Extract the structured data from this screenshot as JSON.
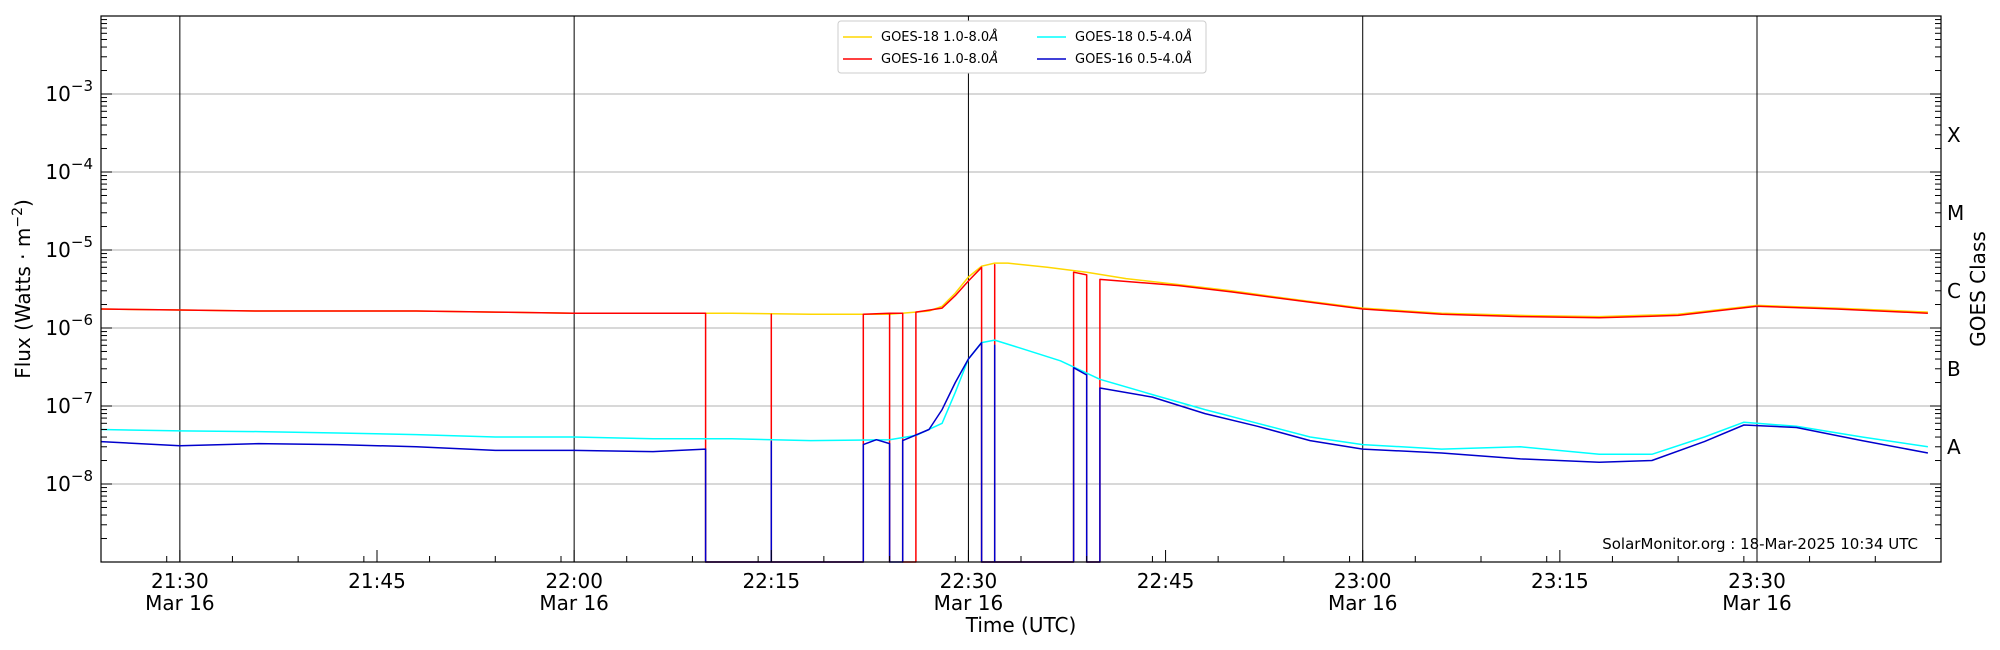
{
  "chart_data": {
    "type": "line",
    "xlabel": "Time (UTC)",
    "ylabel_main": "Flux (Watts · m",
    "ylabel_sup": "−2",
    "ylabel_close": ")",
    "ylabel_right": "GOES Class",
    "y_scale": "log",
    "ylim": [
      1e-09,
      0.01
    ],
    "xlim": [
      "2025-03-16 21:24",
      "2025-03-16 23:44"
    ],
    "y_ticks": [
      {
        "value": 1e-08,
        "base": "10",
        "exp": "−8"
      },
      {
        "value": 1e-07,
        "base": "10",
        "exp": "−7"
      },
      {
        "value": 1e-06,
        "base": "10",
        "exp": "−6"
      },
      {
        "value": 1e-05,
        "base": "10",
        "exp": "−5"
      },
      {
        "value": 0.0001,
        "base": "10",
        "exp": "−4"
      },
      {
        "value": 0.001,
        "base": "10",
        "exp": "−3"
      }
    ],
    "x_ticks": [
      {
        "time": "2025-03-16 21:30",
        "time_label": "21:30",
        "date_label": "Mar 16"
      },
      {
        "time": "2025-03-16 21:45",
        "time_label": "21:45",
        "date_label": ""
      },
      {
        "time": "2025-03-16 22:00",
        "time_label": "22:00",
        "date_label": "Mar 16"
      },
      {
        "time": "2025-03-16 22:15",
        "time_label": "22:15",
        "date_label": ""
      },
      {
        "time": "2025-03-16 22:30",
        "time_label": "22:30",
        "date_label": "Mar 16"
      },
      {
        "time": "2025-03-16 22:45",
        "time_label": "22:45",
        "date_label": ""
      },
      {
        "time": "2025-03-16 23:00",
        "time_label": "23:00",
        "date_label": "Mar 16"
      },
      {
        "time": "2025-03-16 23:15",
        "time_label": "23:15",
        "date_label": ""
      },
      {
        "time": "2025-03-16 23:30",
        "time_label": "23:30",
        "date_label": "Mar 16"
      }
    ],
    "vertical_lines": [
      "2025-03-16 21:30",
      "2025-03-16 22:00",
      "2025-03-16 22:30",
      "2025-03-16 23:00",
      "2025-03-16 23:30"
    ],
    "goes_classes": [
      {
        "label": "A",
        "value": 3e-08
      },
      {
        "label": "B",
        "value": 3e-07
      },
      {
        "label": "C",
        "value": 3e-06
      },
      {
        "label": "M",
        "value": 3e-05
      },
      {
        "label": "X",
        "value": 0.0003
      }
    ],
    "grid": true,
    "legend_position": "top-center",
    "annotation": "SolarMonitor.org : 18-Mar-2025 10:34 UTC",
    "series": [
      {
        "name": "GOES-18 1.0-8.0",
        "name_suffix": "Å",
        "color": "#ffd700",
        "points": [
          [
            "2025-03-16 21:24",
            1.75e-06
          ],
          [
            "2025-03-16 21:30",
            1.7e-06
          ],
          [
            "2025-03-16 21:36",
            1.65e-06
          ],
          [
            "2025-03-16 21:42",
            1.65e-06
          ],
          [
            "2025-03-16 21:48",
            1.65e-06
          ],
          [
            "2025-03-16 21:54",
            1.6e-06
          ],
          [
            "2025-03-16 22:00",
            1.55e-06
          ],
          [
            "2025-03-16 22:06",
            1.55e-06
          ],
          [
            "2025-03-16 22:12",
            1.55e-06
          ],
          [
            "2025-03-16 22:18",
            1.5e-06
          ],
          [
            "2025-03-16 22:24",
            1.5e-06
          ],
          [
            "2025-03-16 22:27",
            1.65e-06
          ],
          [
            "2025-03-16 22:28",
            1.9e-06
          ],
          [
            "2025-03-16 22:29",
            2.8e-06
          ],
          [
            "2025-03-16 22:30",
            4.5e-06
          ],
          [
            "2025-03-16 22:31",
            6.2e-06
          ],
          [
            "2025-03-16 22:32",
            6.8e-06
          ],
          [
            "2025-03-16 22:33",
            6.8e-06
          ],
          [
            "2025-03-16 22:36",
            6e-06
          ],
          [
            "2025-03-16 22:39",
            5.2e-06
          ],
          [
            "2025-03-16 22:42",
            4.3e-06
          ],
          [
            "2025-03-16 22:46",
            3.6e-06
          ],
          [
            "2025-03-16 22:50",
            3e-06
          ],
          [
            "2025-03-16 22:55",
            2.3e-06
          ],
          [
            "2025-03-16 23:00",
            1.8e-06
          ],
          [
            "2025-03-16 23:06",
            1.55e-06
          ],
          [
            "2025-03-16 23:12",
            1.45e-06
          ],
          [
            "2025-03-16 23:18",
            1.4e-06
          ],
          [
            "2025-03-16 23:24",
            1.5e-06
          ],
          [
            "2025-03-16 23:30",
            1.95e-06
          ],
          [
            "2025-03-16 23:36",
            1.8e-06
          ],
          [
            "2025-03-16 23:43",
            1.6e-06
          ]
        ]
      },
      {
        "name": "GOES-16 1.0-8.0",
        "name_suffix": "Å",
        "color": "#ff0000",
        "points": [
          [
            "2025-03-16 21:24",
            1.75e-06
          ],
          [
            "2025-03-16 21:30",
            1.7e-06
          ],
          [
            "2025-03-16 21:36",
            1.65e-06
          ],
          [
            "2025-03-16 21:42",
            1.65e-06
          ],
          [
            "2025-03-16 21:48",
            1.65e-06
          ],
          [
            "2025-03-16 21:54",
            1.6e-06
          ],
          [
            "2025-03-16 22:00",
            1.55e-06
          ],
          [
            "2025-03-16 22:06",
            1.55e-06
          ],
          [
            "2025-03-16 22:10",
            1.55e-06
          ],
          [
            "2025-03-16 22:10",
            1e-09
          ],
          [
            "2025-03-16 22:15",
            1e-09
          ],
          [
            "2025-03-16 22:15",
            1.5e-06
          ],
          [
            "2025-03-16 22:15",
            1e-09
          ],
          [
            "2025-03-16 22:22",
            1e-09
          ],
          [
            "2025-03-16 22:22",
            1.5e-06
          ],
          [
            "2025-03-16 22:24",
            1.55e-06
          ],
          [
            "2025-03-16 22:24",
            1e-09
          ],
          [
            "2025-03-16 22:24",
            1.55e-06
          ],
          [
            "2025-03-16 22:25",
            1.55e-06
          ],
          [
            "2025-03-16 22:25",
            1e-09
          ],
          [
            "2025-03-16 22:26",
            1e-09
          ],
          [
            "2025-03-16 22:26",
            1.6e-06
          ],
          [
            "2025-03-16 22:28",
            1.8e-06
          ],
          [
            "2025-03-16 22:29",
            2.6e-06
          ],
          [
            "2025-03-16 22:30",
            4e-06
          ],
          [
            "2025-03-16 22:31",
            6e-06
          ],
          [
            "2025-03-16 22:31",
            1e-09
          ],
          [
            "2025-03-16 22:32",
            1e-09
          ],
          [
            "2025-03-16 22:32",
            6.5e-06
          ],
          [
            "2025-03-16 22:32",
            1e-09
          ],
          [
            "2025-03-16 22:38",
            1e-09
          ],
          [
            "2025-03-16 22:38",
            5.2e-06
          ],
          [
            "2025-03-16 22:39",
            4.8e-06
          ],
          [
            "2025-03-16 22:39",
            1e-09
          ],
          [
            "2025-03-16 22:40",
            1e-09
          ],
          [
            "2025-03-16 22:40",
            4.2e-06
          ],
          [
            "2025-03-16 22:46",
            3.5e-06
          ],
          [
            "2025-03-16 22:50",
            2.9e-06
          ],
          [
            "2025-03-16 22:55",
            2.25e-06
          ],
          [
            "2025-03-16 23:00",
            1.75e-06
          ],
          [
            "2025-03-16 23:06",
            1.5e-06
          ],
          [
            "2025-03-16 23:12",
            1.4e-06
          ],
          [
            "2025-03-16 23:18",
            1.35e-06
          ],
          [
            "2025-03-16 23:24",
            1.45e-06
          ],
          [
            "2025-03-16 23:30",
            1.9e-06
          ],
          [
            "2025-03-16 23:36",
            1.75e-06
          ],
          [
            "2025-03-16 23:43",
            1.55e-06
          ]
        ]
      },
      {
        "name": "GOES-18 0.5-4.0",
        "name_suffix": "Å",
        "color": "#00ffff",
        "points": [
          [
            "2025-03-16 21:24",
            5e-08
          ],
          [
            "2025-03-16 21:30",
            4.8e-08
          ],
          [
            "2025-03-16 21:36",
            4.7e-08
          ],
          [
            "2025-03-16 21:42",
            4.5e-08
          ],
          [
            "2025-03-16 21:48",
            4.3e-08
          ],
          [
            "2025-03-16 21:54",
            4e-08
          ],
          [
            "2025-03-16 22:00",
            4e-08
          ],
          [
            "2025-03-16 22:06",
            3.8e-08
          ],
          [
            "2025-03-16 22:12",
            3.8e-08
          ],
          [
            "2025-03-16 22:18",
            3.6e-08
          ],
          [
            "2025-03-16 22:24",
            3.7e-08
          ],
          [
            "2025-03-16 22:26",
            4.2e-08
          ],
          [
            "2025-03-16 22:28",
            6e-08
          ],
          [
            "2025-03-16 22:29",
            1.5e-07
          ],
          [
            "2025-03-16 22:30",
            4e-07
          ],
          [
            "2025-03-16 22:31",
            6.5e-07
          ],
          [
            "2025-03-16 22:32",
            7e-07
          ],
          [
            "2025-03-16 22:34",
            5.5e-07
          ],
          [
            "2025-03-16 22:37",
            3.8e-07
          ],
          [
            "2025-03-16 22:40",
            2.2e-07
          ],
          [
            "2025-03-16 22:44",
            1.4e-07
          ],
          [
            "2025-03-16 22:48",
            9e-08
          ],
          [
            "2025-03-16 22:52",
            6e-08
          ],
          [
            "2025-03-16 22:56",
            4e-08
          ],
          [
            "2025-03-16 23:00",
            3.2e-08
          ],
          [
            "2025-03-16 23:06",
            2.8e-08
          ],
          [
            "2025-03-16 23:12",
            3e-08
          ],
          [
            "2025-03-16 23:18",
            2.4e-08
          ],
          [
            "2025-03-16 23:22",
            2.4e-08
          ],
          [
            "2025-03-16 23:26",
            4e-08
          ],
          [
            "2025-03-16 23:29",
            6.2e-08
          ],
          [
            "2025-03-16 23:33",
            5.5e-08
          ],
          [
            "2025-03-16 23:38",
            4e-08
          ],
          [
            "2025-03-16 23:43",
            3e-08
          ]
        ]
      },
      {
        "name": "GOES-16 0.5-4.0",
        "name_suffix": "Å",
        "color": "#0000cc",
        "points": [
          [
            "2025-03-16 21:24",
            3.5e-08
          ],
          [
            "2025-03-16 21:30",
            3.1e-08
          ],
          [
            "2025-03-16 21:36",
            3.3e-08
          ],
          [
            "2025-03-16 21:42",
            3.2e-08
          ],
          [
            "2025-03-16 21:48",
            3e-08
          ],
          [
            "2025-03-16 21:54",
            2.7e-08
          ],
          [
            "2025-03-16 22:00",
            2.7e-08
          ],
          [
            "2025-03-16 22:06",
            2.6e-08
          ],
          [
            "2025-03-16 22:10",
            2.8e-08
          ],
          [
            "2025-03-16 22:10",
            1e-09
          ],
          [
            "2025-03-16 22:15",
            1e-09
          ],
          [
            "2025-03-16 22:15",
            3.5e-08
          ],
          [
            "2025-03-16 22:15",
            1e-09
          ],
          [
            "2025-03-16 22:22",
            1e-09
          ],
          [
            "2025-03-16 22:22",
            3.2e-08
          ],
          [
            "2025-03-16 22:23",
            3.7e-08
          ],
          [
            "2025-03-16 22:24",
            3.3e-08
          ],
          [
            "2025-03-16 22:24",
            1e-09
          ],
          [
            "2025-03-16 22:25",
            1e-09
          ],
          [
            "2025-03-16 22:25",
            3.6e-08
          ],
          [
            "2025-03-16 22:27",
            5e-08
          ],
          [
            "2025-03-16 22:28",
            9e-08
          ],
          [
            "2025-03-16 22:29",
            2e-07
          ],
          [
            "2025-03-16 22:30",
            4e-07
          ],
          [
            "2025-03-16 22:31",
            6.5e-07
          ],
          [
            "2025-03-16 22:31",
            1e-09
          ],
          [
            "2025-03-16 22:32",
            1e-09
          ],
          [
            "2025-03-16 22:32",
            6e-07
          ],
          [
            "2025-03-16 22:32",
            1e-09
          ],
          [
            "2025-03-16 22:38",
            1e-09
          ],
          [
            "2025-03-16 22:38",
            3.1e-07
          ],
          [
            "2025-03-16 22:39",
            2.5e-07
          ],
          [
            "2025-03-16 22:39",
            1e-09
          ],
          [
            "2025-03-16 22:40",
            1e-09
          ],
          [
            "2025-03-16 22:40",
            1.7e-07
          ],
          [
            "2025-03-16 22:44",
            1.3e-07
          ],
          [
            "2025-03-16 22:48",
            8e-08
          ],
          [
            "2025-03-16 22:52",
            5.5e-08
          ],
          [
            "2025-03-16 22:56",
            3.6e-08
          ],
          [
            "2025-03-16 23:00",
            2.8e-08
          ],
          [
            "2025-03-16 23:06",
            2.5e-08
          ],
          [
            "2025-03-16 23:12",
            2.1e-08
          ],
          [
            "2025-03-16 23:18",
            1.9e-08
          ],
          [
            "2025-03-16 23:22",
            2e-08
          ],
          [
            "2025-03-16 23:26",
            3.5e-08
          ],
          [
            "2025-03-16 23:29",
            5.7e-08
          ],
          [
            "2025-03-16 23:33",
            5.3e-08
          ],
          [
            "2025-03-16 23:38",
            3.6e-08
          ],
          [
            "2025-03-16 23:43",
            2.5e-08
          ]
        ]
      }
    ]
  }
}
